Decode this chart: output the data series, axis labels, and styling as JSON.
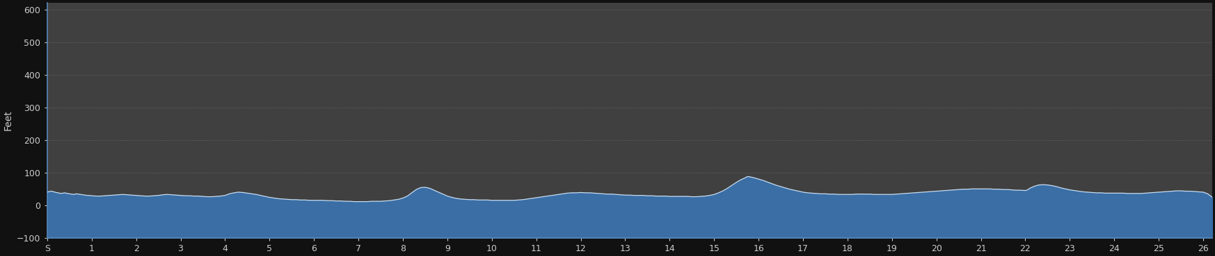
{
  "ylabel": "Feet",
  "xlabel": "",
  "xlim": [
    0,
    26.2
  ],
  "ylim": [
    -100,
    620
  ],
  "yticks": [
    -100,
    0,
    100,
    200,
    300,
    400,
    500,
    600
  ],
  "xtick_labels": [
    "S",
    "1",
    "2",
    "3",
    "4",
    "5",
    "6",
    "7",
    "8",
    "9",
    "10",
    "11",
    "12",
    "13",
    "14",
    "15",
    "16",
    "17",
    "18",
    "19",
    "20",
    "21",
    "22",
    "23",
    "24",
    "25",
    "26"
  ],
  "xtick_positions": [
    0,
    1,
    2,
    3,
    4,
    5,
    6,
    7,
    8,
    9,
    10,
    11,
    12,
    13,
    14,
    15,
    16,
    17,
    18,
    19,
    20,
    21,
    22,
    23,
    24,
    25,
    26
  ],
  "background_color": "#111111",
  "plot_bg_color": "#404040",
  "fill_color": "#3a6ea5",
  "line_color": "#c8dcf0",
  "grid_color": "#888888",
  "text_color": "#cccccc",
  "elevation_data": [
    [
      0.0,
      40
    ],
    [
      0.05,
      42
    ],
    [
      0.1,
      43
    ],
    [
      0.15,
      41
    ],
    [
      0.2,
      39
    ],
    [
      0.25,
      38
    ],
    [
      0.3,
      36
    ],
    [
      0.35,
      37
    ],
    [
      0.4,
      38
    ],
    [
      0.45,
      36
    ],
    [
      0.5,
      35
    ],
    [
      0.55,
      34
    ],
    [
      0.6,
      33
    ],
    [
      0.65,
      35
    ],
    [
      0.7,
      34
    ],
    [
      0.75,
      33
    ],
    [
      0.8,
      32
    ],
    [
      0.85,
      31
    ],
    [
      0.9,
      30
    ],
    [
      0.95,
      30
    ],
    [
      1.0,
      29
    ],
    [
      1.1,
      28
    ],
    [
      1.2,
      28
    ],
    [
      1.3,
      29
    ],
    [
      1.4,
      30
    ],
    [
      1.5,
      31
    ],
    [
      1.6,
      32
    ],
    [
      1.7,
      33
    ],
    [
      1.8,
      32
    ],
    [
      1.9,
      31
    ],
    [
      2.0,
      30
    ],
    [
      2.1,
      29
    ],
    [
      2.2,
      28
    ],
    [
      2.3,
      28
    ],
    [
      2.4,
      29
    ],
    [
      2.5,
      30
    ],
    [
      2.6,
      32
    ],
    [
      2.7,
      33
    ],
    [
      2.8,
      32
    ],
    [
      2.9,
      31
    ],
    [
      3.0,
      30
    ],
    [
      3.1,
      29
    ],
    [
      3.2,
      29
    ],
    [
      3.3,
      28
    ],
    [
      3.4,
      28
    ],
    [
      3.5,
      27
    ],
    [
      3.6,
      26
    ],
    [
      3.7,
      26
    ],
    [
      3.8,
      27
    ],
    [
      3.9,
      28
    ],
    [
      4.0,
      30
    ],
    [
      4.1,
      35
    ],
    [
      4.2,
      38
    ],
    [
      4.3,
      40
    ],
    [
      4.4,
      39
    ],
    [
      4.5,
      37
    ],
    [
      4.6,
      35
    ],
    [
      4.7,
      33
    ],
    [
      4.8,
      30
    ],
    [
      4.9,
      27
    ],
    [
      5.0,
      24
    ],
    [
      5.1,
      22
    ],
    [
      5.2,
      20
    ],
    [
      5.3,
      19
    ],
    [
      5.4,
      18
    ],
    [
      5.5,
      17
    ],
    [
      5.6,
      17
    ],
    [
      5.7,
      16
    ],
    [
      5.8,
      16
    ],
    [
      5.9,
      15
    ],
    [
      6.0,
      15
    ],
    [
      6.1,
      15
    ],
    [
      6.2,
      15
    ],
    [
      6.3,
      14
    ],
    [
      6.4,
      14
    ],
    [
      6.5,
      13
    ],
    [
      6.6,
      13
    ],
    [
      6.7,
      12
    ],
    [
      6.8,
      12
    ],
    [
      6.9,
      11
    ],
    [
      7.0,
      11
    ],
    [
      7.1,
      11
    ],
    [
      7.2,
      11
    ],
    [
      7.3,
      12
    ],
    [
      7.4,
      12
    ],
    [
      7.5,
      12
    ],
    [
      7.6,
      13
    ],
    [
      7.7,
      14
    ],
    [
      7.8,
      16
    ],
    [
      7.9,
      18
    ],
    [
      8.0,
      22
    ],
    [
      8.1,
      28
    ],
    [
      8.2,
      38
    ],
    [
      8.3,
      48
    ],
    [
      8.4,
      54
    ],
    [
      8.5,
      55
    ],
    [
      8.6,
      52
    ],
    [
      8.7,
      46
    ],
    [
      8.8,
      40
    ],
    [
      8.9,
      34
    ],
    [
      9.0,
      28
    ],
    [
      9.1,
      24
    ],
    [
      9.2,
      21
    ],
    [
      9.3,
      19
    ],
    [
      9.4,
      18
    ],
    [
      9.5,
      17
    ],
    [
      9.6,
      17
    ],
    [
      9.7,
      16
    ],
    [
      9.8,
      16
    ],
    [
      9.9,
      16
    ],
    [
      10.0,
      15
    ],
    [
      10.1,
      15
    ],
    [
      10.2,
      15
    ],
    [
      10.3,
      15
    ],
    [
      10.4,
      15
    ],
    [
      10.5,
      15
    ],
    [
      10.6,
      16
    ],
    [
      10.7,
      17
    ],
    [
      10.8,
      19
    ],
    [
      10.9,
      21
    ],
    [
      11.0,
      23
    ],
    [
      11.1,
      25
    ],
    [
      11.2,
      27
    ],
    [
      11.3,
      29
    ],
    [
      11.4,
      31
    ],
    [
      11.5,
      33
    ],
    [
      11.6,
      35
    ],
    [
      11.7,
      37
    ],
    [
      11.8,
      38
    ],
    [
      11.9,
      38
    ],
    [
      12.0,
      39
    ],
    [
      12.1,
      38
    ],
    [
      12.2,
      38
    ],
    [
      12.3,
      37
    ],
    [
      12.4,
      36
    ],
    [
      12.5,
      35
    ],
    [
      12.6,
      34
    ],
    [
      12.7,
      34
    ],
    [
      12.8,
      33
    ],
    [
      12.9,
      32
    ],
    [
      13.0,
      31
    ],
    [
      13.1,
      31
    ],
    [
      13.2,
      30
    ],
    [
      13.3,
      30
    ],
    [
      13.4,
      30
    ],
    [
      13.5,
      29
    ],
    [
      13.6,
      29
    ],
    [
      13.7,
      28
    ],
    [
      13.8,
      28
    ],
    [
      13.9,
      28
    ],
    [
      14.0,
      27
    ],
    [
      14.1,
      27
    ],
    [
      14.2,
      27
    ],
    [
      14.3,
      27
    ],
    [
      14.4,
      27
    ],
    [
      14.5,
      26
    ],
    [
      14.6,
      26
    ],
    [
      14.7,
      27
    ],
    [
      14.8,
      28
    ],
    [
      14.9,
      30
    ],
    [
      15.0,
      33
    ],
    [
      15.1,
      38
    ],
    [
      15.2,
      44
    ],
    [
      15.3,
      52
    ],
    [
      15.4,
      61
    ],
    [
      15.5,
      70
    ],
    [
      15.6,
      78
    ],
    [
      15.7,
      84
    ],
    [
      15.75,
      88
    ],
    [
      15.8,
      87
    ],
    [
      15.9,
      84
    ],
    [
      16.0,
      80
    ],
    [
      16.1,
      76
    ],
    [
      16.2,
      71
    ],
    [
      16.3,
      66
    ],
    [
      16.4,
      61
    ],
    [
      16.5,
      57
    ],
    [
      16.6,
      53
    ],
    [
      16.7,
      49
    ],
    [
      16.8,
      46
    ],
    [
      16.9,
      43
    ],
    [
      17.0,
      40
    ],
    [
      17.1,
      38
    ],
    [
      17.2,
      37
    ],
    [
      17.3,
      36
    ],
    [
      17.4,
      35
    ],
    [
      17.5,
      35
    ],
    [
      17.6,
      34
    ],
    [
      17.7,
      34
    ],
    [
      17.8,
      33
    ],
    [
      17.9,
      33
    ],
    [
      18.0,
      33
    ],
    [
      18.1,
      33
    ],
    [
      18.2,
      34
    ],
    [
      18.3,
      34
    ],
    [
      18.4,
      34
    ],
    [
      18.5,
      34
    ],
    [
      18.6,
      33
    ],
    [
      18.7,
      33
    ],
    [
      18.8,
      33
    ],
    [
      18.9,
      33
    ],
    [
      19.0,
      33
    ],
    [
      19.1,
      34
    ],
    [
      19.2,
      35
    ],
    [
      19.3,
      36
    ],
    [
      19.4,
      37
    ],
    [
      19.5,
      38
    ],
    [
      19.6,
      39
    ],
    [
      19.7,
      40
    ],
    [
      19.8,
      41
    ],
    [
      19.9,
      42
    ],
    [
      20.0,
      43
    ],
    [
      20.1,
      44
    ],
    [
      20.2,
      45
    ],
    [
      20.3,
      46
    ],
    [
      20.4,
      47
    ],
    [
      20.5,
      48
    ],
    [
      20.6,
      49
    ],
    [
      20.7,
      49
    ],
    [
      20.8,
      50
    ],
    [
      20.9,
      50
    ],
    [
      21.0,
      50
    ],
    [
      21.1,
      50
    ],
    [
      21.2,
      50
    ],
    [
      21.3,
      49
    ],
    [
      21.4,
      49
    ],
    [
      21.5,
      48
    ],
    [
      21.6,
      48
    ],
    [
      21.7,
      47
    ],
    [
      21.8,
      46
    ],
    [
      21.9,
      46
    ],
    [
      22.0,
      45
    ],
    [
      22.05,
      47
    ],
    [
      22.1,
      52
    ],
    [
      22.2,
      58
    ],
    [
      22.3,
      62
    ],
    [
      22.4,
      63
    ],
    [
      22.5,
      62
    ],
    [
      22.6,
      60
    ],
    [
      22.7,
      57
    ],
    [
      22.8,
      53
    ],
    [
      22.9,
      50
    ],
    [
      23.0,
      47
    ],
    [
      23.1,
      45
    ],
    [
      23.2,
      43
    ],
    [
      23.3,
      41
    ],
    [
      23.4,
      40
    ],
    [
      23.5,
      39
    ],
    [
      23.6,
      38
    ],
    [
      23.7,
      38
    ],
    [
      23.8,
      37
    ],
    [
      23.9,
      37
    ],
    [
      24.0,
      37
    ],
    [
      24.1,
      37
    ],
    [
      24.2,
      37
    ],
    [
      24.3,
      36
    ],
    [
      24.4,
      36
    ],
    [
      24.5,
      36
    ],
    [
      24.6,
      36
    ],
    [
      24.7,
      37
    ],
    [
      24.8,
      38
    ],
    [
      24.9,
      39
    ],
    [
      25.0,
      40
    ],
    [
      25.1,
      41
    ],
    [
      25.2,
      42
    ],
    [
      25.3,
      43
    ],
    [
      25.4,
      44
    ],
    [
      25.5,
      44
    ],
    [
      25.6,
      43
    ],
    [
      25.7,
      43
    ],
    [
      25.8,
      42
    ],
    [
      25.9,
      41
    ],
    [
      26.0,
      40
    ],
    [
      26.1,
      35
    ],
    [
      26.2,
      25
    ]
  ]
}
